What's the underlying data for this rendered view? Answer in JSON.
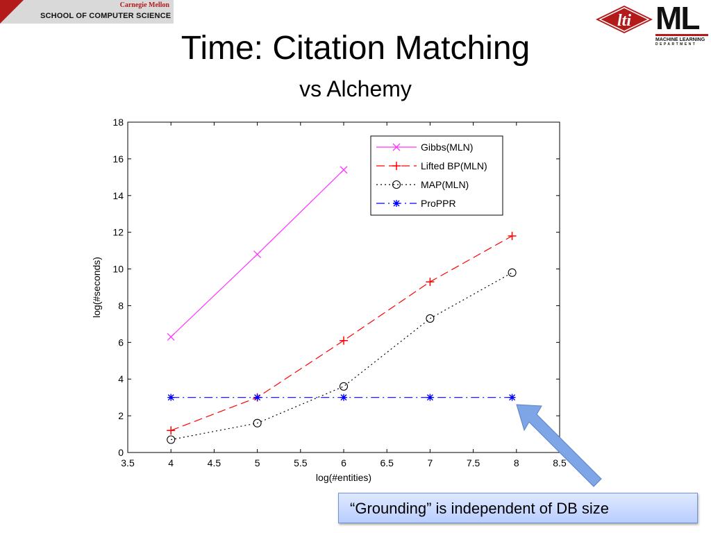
{
  "header": {
    "university": "Carnegie Mellon",
    "school": "SCHOOL OF COMPUTER SCIENCE",
    "lti_logo": "lti",
    "ml_logo": "ML",
    "ml_logo_line1": "MACHINE LEARNING",
    "ml_logo_line2": "DEPARTMENT",
    "brand_red": "#b31b1b"
  },
  "slide": {
    "title": "Time: Citation Matching",
    "subtitle": "vs Alchemy"
  },
  "callout": {
    "text": "“Grounding” is independent of DB size",
    "icon": "arrow-icon",
    "fill": "#c6d8ff",
    "arrow_color": "#7ea5e6"
  },
  "chart_data": {
    "type": "line",
    "xlabel": "log(#entities)",
    "ylabel": "log(#seconds)",
    "xlim": [
      3.5,
      8.5
    ],
    "ylim": [
      0,
      18
    ],
    "xticks": [
      "3.5",
      "4",
      "4.5",
      "5",
      "5.5",
      "6",
      "6.5",
      "7",
      "7.5",
      "8",
      "8.5"
    ],
    "yticks": [
      "0",
      "2",
      "4",
      "6",
      "8",
      "10",
      "12",
      "14",
      "16",
      "18"
    ],
    "grid": false,
    "legend_position": "top-right",
    "series": [
      {
        "name": "Gibbs(MLN)",
        "color": "#ff33ff",
        "dash": "solid",
        "marker": "x",
        "x": [
          4,
          5,
          6
        ],
        "y": [
          6.3,
          10.8,
          15.4
        ]
      },
      {
        "name": "Lifted BP(MLN)",
        "color": "#ff0000",
        "dash": "dashed",
        "marker": "+",
        "x": [
          4,
          5,
          6,
          7,
          7.95
        ],
        "y": [
          1.2,
          3.0,
          6.1,
          9.3,
          11.8
        ]
      },
      {
        "name": "MAP(MLN)",
        "color": "#000000",
        "dash": "dotted",
        "marker": "o",
        "x": [
          4,
          5,
          6,
          7,
          7.95
        ],
        "y": [
          0.7,
          1.6,
          3.6,
          7.3,
          9.8
        ]
      },
      {
        "name": "ProPPR",
        "color": "#0000ff",
        "dash": "dashdot",
        "marker": "*",
        "x": [
          4,
          5,
          6,
          7,
          7.95
        ],
        "y": [
          3.0,
          3.0,
          3.0,
          3.0,
          3.0
        ]
      }
    ]
  }
}
